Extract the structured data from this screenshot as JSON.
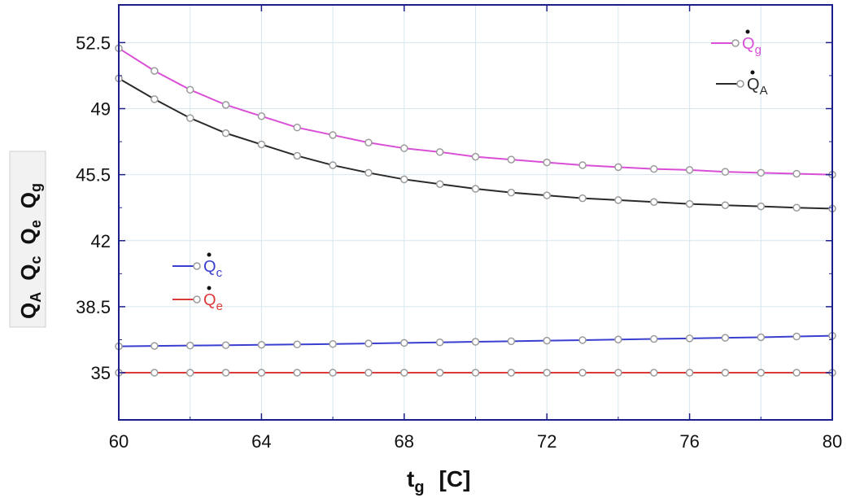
{
  "chart_data": {
    "type": "line",
    "xlabel": "t",
    "xlabel_sub": "g",
    "xlabel_unit": "[C]",
    "ylabel_terms": [
      {
        "base": "Q",
        "sub": "A"
      },
      {
        "base": "Q",
        "sub": "c"
      },
      {
        "base": "Q",
        "sub": "e"
      },
      {
        "base": "Q",
        "sub": "g"
      }
    ],
    "xlim": [
      60,
      80
    ],
    "ylim": [
      32.5,
      54.5
    ],
    "xticks": [
      60,
      64,
      68,
      72,
      76,
      80
    ],
    "xtick_labels": [
      "60",
      "64",
      "68",
      "72",
      "76",
      "80"
    ],
    "yticks": [
      35,
      38.5,
      42,
      45.5,
      49,
      52.5
    ],
    "ytick_labels": [
      "35",
      "38.5",
      "42",
      "45.5",
      "49",
      "52.5"
    ],
    "grid": true,
    "x": [
      60,
      61,
      62,
      63,
      64,
      65,
      66,
      67,
      68,
      69,
      70,
      71,
      72,
      73,
      74,
      75,
      76,
      77,
      78,
      79,
      80
    ],
    "series": [
      {
        "name": "Q̇g",
        "base": "Q",
        "sub": "g",
        "color": "#d94fd6",
        "values": [
          52.2,
          51.0,
          50.0,
          49.2,
          48.6,
          48.0,
          47.6,
          47.2,
          46.9,
          46.7,
          46.45,
          46.3,
          46.15,
          46.0,
          45.9,
          45.8,
          45.75,
          45.65,
          45.6,
          45.55,
          45.5
        ]
      },
      {
        "name": "Q̇A",
        "base": "Q",
        "sub": "A",
        "color": "#2a2a2a",
        "values": [
          50.6,
          49.5,
          48.5,
          47.7,
          47.1,
          46.5,
          46.0,
          45.6,
          45.25,
          45.0,
          44.75,
          44.55,
          44.4,
          44.25,
          44.15,
          44.05,
          43.95,
          43.88,
          43.82,
          43.75,
          43.7
        ]
      },
      {
        "name": "Q̇c",
        "base": "Q",
        "sub": "c",
        "color": "#3a3fd0",
        "values": [
          36.4,
          36.42,
          36.44,
          36.46,
          36.48,
          36.5,
          36.52,
          36.55,
          36.58,
          36.61,
          36.64,
          36.67,
          36.7,
          36.73,
          36.76,
          36.79,
          36.82,
          36.85,
          36.88,
          36.92,
          36.96
        ]
      },
      {
        "name": "Q̇e",
        "base": "Q",
        "sub": "e",
        "color": "#dd3a3a",
        "values": [
          35,
          35,
          35,
          35,
          35,
          35,
          35,
          35,
          35,
          35,
          35,
          35,
          35,
          35,
          35,
          35,
          35,
          35,
          35,
          35,
          35
        ]
      }
    ],
    "legend": [
      {
        "group": "top-right",
        "series": [
          "Q̇g",
          "Q̇A"
        ]
      },
      {
        "group": "middle-left",
        "series": [
          "Q̇c",
          "Q̇e"
        ]
      }
    ]
  }
}
